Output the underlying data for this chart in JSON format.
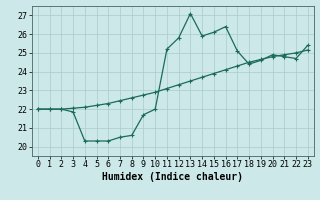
{
  "xlabel": "Humidex (Indice chaleur)",
  "xlim": [
    -0.5,
    23.5
  ],
  "ylim": [
    19.5,
    27.5
  ],
  "xticks": [
    0,
    1,
    2,
    3,
    4,
    5,
    6,
    7,
    8,
    9,
    10,
    11,
    12,
    13,
    14,
    15,
    16,
    17,
    18,
    19,
    20,
    21,
    22,
    23
  ],
  "yticks": [
    20,
    21,
    22,
    23,
    24,
    25,
    26,
    27
  ],
  "bg_color": "#cce8e8",
  "grid_color": "#aacccc",
  "line_color": "#1a6b5a",
  "line1_x": [
    0,
    1,
    2,
    3,
    4,
    5,
    6,
    7,
    8,
    9,
    10,
    11,
    12,
    13,
    14,
    15,
    16,
    17,
    18,
    19,
    20,
    21,
    22,
    23
  ],
  "line1_y": [
    22.0,
    22.0,
    22.0,
    21.85,
    20.3,
    20.3,
    20.3,
    20.5,
    20.6,
    21.7,
    22.0,
    25.2,
    25.8,
    27.1,
    25.9,
    26.1,
    26.4,
    25.1,
    24.4,
    24.6,
    24.9,
    24.8,
    24.7,
    25.4
  ],
  "line2_x": [
    0,
    1,
    2,
    3,
    4,
    5,
    6,
    7,
    8,
    9,
    10,
    11,
    12,
    13,
    14,
    15,
    16,
    17,
    18,
    19,
    20,
    21,
    22,
    23
  ],
  "line2_y": [
    22.0,
    22.0,
    22.0,
    22.05,
    22.1,
    22.2,
    22.3,
    22.45,
    22.6,
    22.75,
    22.9,
    23.1,
    23.3,
    23.5,
    23.7,
    23.9,
    24.1,
    24.3,
    24.5,
    24.65,
    24.8,
    24.9,
    25.0,
    25.15
  ],
  "tick_fontsize": 6,
  "xlabel_fontsize": 7,
  "marker_size": 3,
  "linewidth": 0.9
}
